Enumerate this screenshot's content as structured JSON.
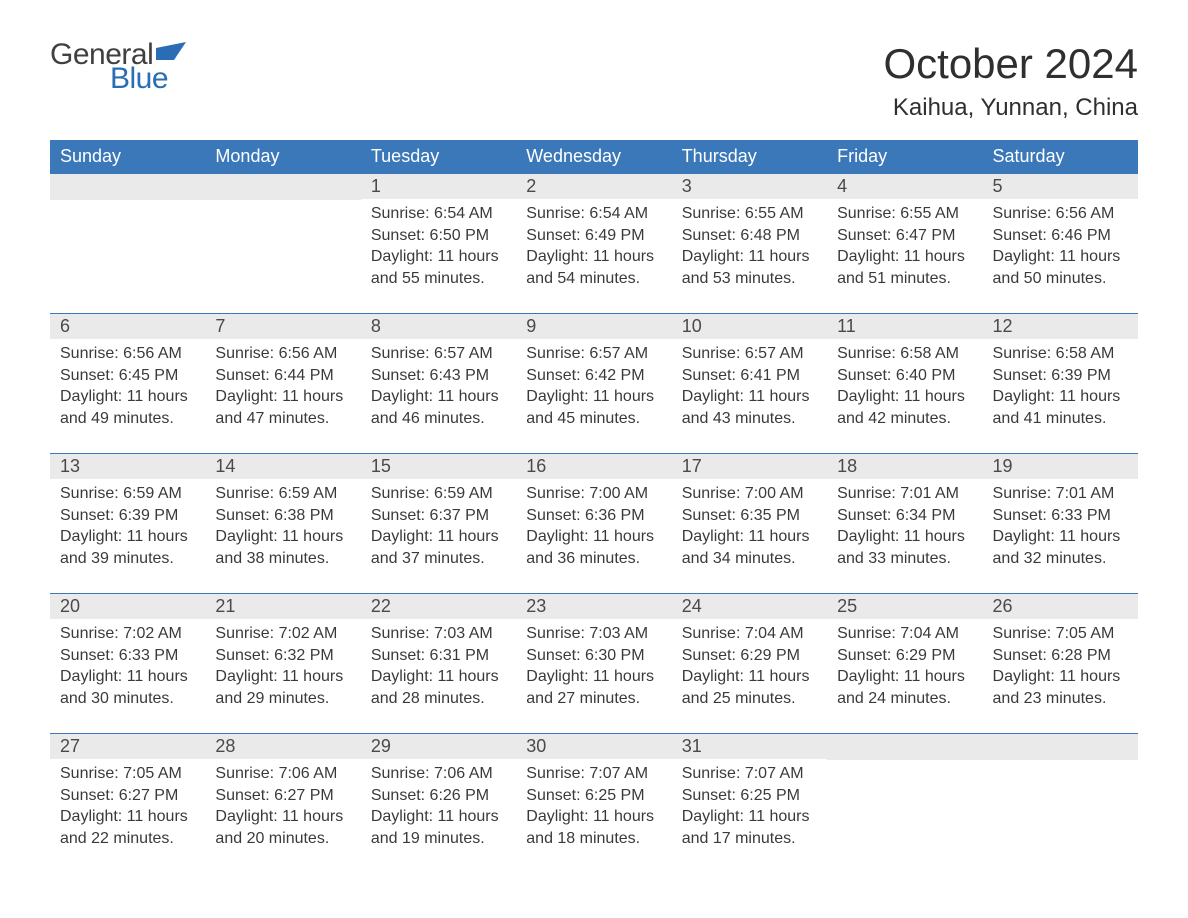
{
  "brand": {
    "general": "General",
    "blue": "Blue",
    "flag_color": "#2a6db4"
  },
  "title": "October 2024",
  "location": "Kaihua, Yunnan, China",
  "colors": {
    "header_bg": "#3a78b9",
    "header_text": "#ffffff",
    "daynum_bg": "#eaeaea",
    "row_border": "#3a78b9",
    "body_text": "#3a3a3a",
    "background": "#ffffff"
  },
  "weekdays": [
    "Sunday",
    "Monday",
    "Tuesday",
    "Wednesday",
    "Thursday",
    "Friday",
    "Saturday"
  ],
  "weeks": [
    [
      null,
      null,
      {
        "day": "1",
        "sunrise": "6:54 AM",
        "sunset": "6:50 PM",
        "daylight": "11 hours and 55 minutes."
      },
      {
        "day": "2",
        "sunrise": "6:54 AM",
        "sunset": "6:49 PM",
        "daylight": "11 hours and 54 minutes."
      },
      {
        "day": "3",
        "sunrise": "6:55 AM",
        "sunset": "6:48 PM",
        "daylight": "11 hours and 53 minutes."
      },
      {
        "day": "4",
        "sunrise": "6:55 AM",
        "sunset": "6:47 PM",
        "daylight": "11 hours and 51 minutes."
      },
      {
        "day": "5",
        "sunrise": "6:56 AM",
        "sunset": "6:46 PM",
        "daylight": "11 hours and 50 minutes."
      }
    ],
    [
      {
        "day": "6",
        "sunrise": "6:56 AM",
        "sunset": "6:45 PM",
        "daylight": "11 hours and 49 minutes."
      },
      {
        "day": "7",
        "sunrise": "6:56 AM",
        "sunset": "6:44 PM",
        "daylight": "11 hours and 47 minutes."
      },
      {
        "day": "8",
        "sunrise": "6:57 AM",
        "sunset": "6:43 PM",
        "daylight": "11 hours and 46 minutes."
      },
      {
        "day": "9",
        "sunrise": "6:57 AM",
        "sunset": "6:42 PM",
        "daylight": "11 hours and 45 minutes."
      },
      {
        "day": "10",
        "sunrise": "6:57 AM",
        "sunset": "6:41 PM",
        "daylight": "11 hours and 43 minutes."
      },
      {
        "day": "11",
        "sunrise": "6:58 AM",
        "sunset": "6:40 PM",
        "daylight": "11 hours and 42 minutes."
      },
      {
        "day": "12",
        "sunrise": "6:58 AM",
        "sunset": "6:39 PM",
        "daylight": "11 hours and 41 minutes."
      }
    ],
    [
      {
        "day": "13",
        "sunrise": "6:59 AM",
        "sunset": "6:39 PM",
        "daylight": "11 hours and 39 minutes."
      },
      {
        "day": "14",
        "sunrise": "6:59 AM",
        "sunset": "6:38 PM",
        "daylight": "11 hours and 38 minutes."
      },
      {
        "day": "15",
        "sunrise": "6:59 AM",
        "sunset": "6:37 PM",
        "daylight": "11 hours and 37 minutes."
      },
      {
        "day": "16",
        "sunrise": "7:00 AM",
        "sunset": "6:36 PM",
        "daylight": "11 hours and 36 minutes."
      },
      {
        "day": "17",
        "sunrise": "7:00 AM",
        "sunset": "6:35 PM",
        "daylight": "11 hours and 34 minutes."
      },
      {
        "day": "18",
        "sunrise": "7:01 AM",
        "sunset": "6:34 PM",
        "daylight": "11 hours and 33 minutes."
      },
      {
        "day": "19",
        "sunrise": "7:01 AM",
        "sunset": "6:33 PM",
        "daylight": "11 hours and 32 minutes."
      }
    ],
    [
      {
        "day": "20",
        "sunrise": "7:02 AM",
        "sunset": "6:33 PM",
        "daylight": "11 hours and 30 minutes."
      },
      {
        "day": "21",
        "sunrise": "7:02 AM",
        "sunset": "6:32 PM",
        "daylight": "11 hours and 29 minutes."
      },
      {
        "day": "22",
        "sunrise": "7:03 AM",
        "sunset": "6:31 PM",
        "daylight": "11 hours and 28 minutes."
      },
      {
        "day": "23",
        "sunrise": "7:03 AM",
        "sunset": "6:30 PM",
        "daylight": "11 hours and 27 minutes."
      },
      {
        "day": "24",
        "sunrise": "7:04 AM",
        "sunset": "6:29 PM",
        "daylight": "11 hours and 25 minutes."
      },
      {
        "day": "25",
        "sunrise": "7:04 AM",
        "sunset": "6:29 PM",
        "daylight": "11 hours and 24 minutes."
      },
      {
        "day": "26",
        "sunrise": "7:05 AM",
        "sunset": "6:28 PM",
        "daylight": "11 hours and 23 minutes."
      }
    ],
    [
      {
        "day": "27",
        "sunrise": "7:05 AM",
        "sunset": "6:27 PM",
        "daylight": "11 hours and 22 minutes."
      },
      {
        "day": "28",
        "sunrise": "7:06 AM",
        "sunset": "6:27 PM",
        "daylight": "11 hours and 20 minutes."
      },
      {
        "day": "29",
        "sunrise": "7:06 AM",
        "sunset": "6:26 PM",
        "daylight": "11 hours and 19 minutes."
      },
      {
        "day": "30",
        "sunrise": "7:07 AM",
        "sunset": "6:25 PM",
        "daylight": "11 hours and 18 minutes."
      },
      {
        "day": "31",
        "sunrise": "7:07 AM",
        "sunset": "6:25 PM",
        "daylight": "11 hours and 17 minutes."
      },
      null,
      null
    ]
  ],
  "labels": {
    "sunrise": "Sunrise: ",
    "sunset": "Sunset: ",
    "daylight": "Daylight: "
  }
}
